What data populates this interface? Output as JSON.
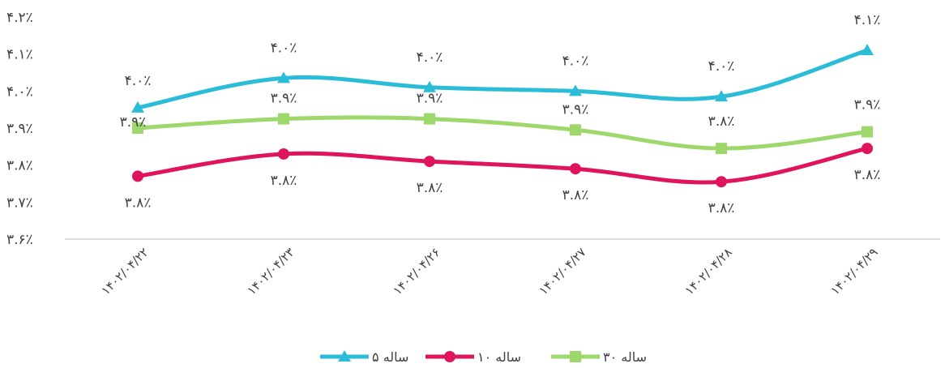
{
  "chart_data": {
    "type": "line",
    "title": "",
    "xlabel": "",
    "ylabel": "",
    "ylim": [
      3.6,
      4.2
    ],
    "grid": false,
    "legend_position": "bottom",
    "y_tick_labels": [
      "۴.۲٪",
      "۴.۱٪",
      "۴.۰٪",
      "۳.۹٪",
      "۳.۸٪",
      "۳.۷٪",
      "۳.۶٪"
    ],
    "categories": [
      "۱۴۰۲/۰۴/۲۲",
      "۱۴۰۲/۰۴/۲۳",
      "۱۴۰۲/۰۴/۲۶",
      "۱۴۰۲/۰۴/۲۷",
      "۱۴۰۲/۰۴/۲۸",
      "۱۴۰۲/۰۴/۲۹"
    ],
    "series": [
      {
        "name": "۵ ساله",
        "color": "#2BBCD8",
        "marker": "triangle",
        "values": [
          3.955,
          4.035,
          4.01,
          4.0,
          3.985,
          4.11
        ],
        "labels": [
          "۴.۰٪",
          "۴.۰٪",
          "۴.۰٪",
          "۴.۰٪",
          "۴.۰٪",
          "۴.۱٪"
        ]
      },
      {
        "name": "۱۰ ساله",
        "color": "#E0145C",
        "marker": "circle",
        "values": [
          3.77,
          3.83,
          3.81,
          3.79,
          3.755,
          3.845
        ],
        "labels": [
          "۳.۸٪",
          "۳.۸٪",
          "۳.۸٪",
          "۳.۸٪",
          "۳.۸٪",
          "۳.۸٪"
        ]
      },
      {
        "name": "۳۰ ساله",
        "color": "#9ED76B",
        "marker": "square",
        "values": [
          3.9,
          3.925,
          3.925,
          3.895,
          3.845,
          3.89
        ],
        "labels": [
          "۳.۹٪",
          "۳.۹٪",
          "۳.۹٪",
          "۳.۹٪",
          "۳.۸٪",
          "۳.۹٪"
        ]
      }
    ]
  }
}
